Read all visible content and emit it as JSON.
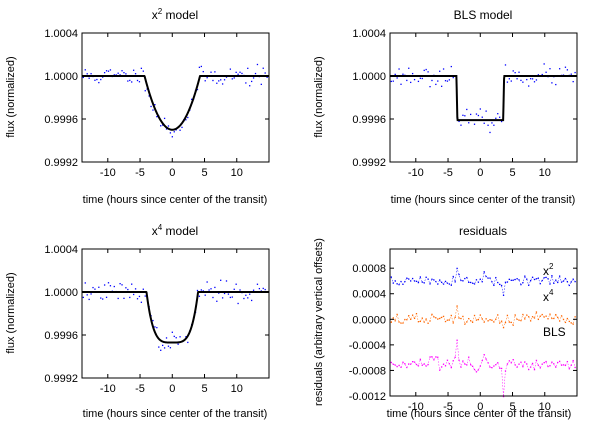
{
  "chart_data": [
    {
      "type": "scatter",
      "title_base": "x",
      "title_sup": "2",
      "title_rest": " model",
      "xlabel": "time (hours since center of the transit)",
      "ylabel": "flux (normalized)",
      "xlim": [
        -14,
        15
      ],
      "ylim": [
        0.9992,
        1.0004
      ],
      "xticks": [
        -10,
        -5,
        0,
        5,
        10
      ],
      "xtick_labels": [
        "-10",
        "-5",
        "0",
        "5",
        "10"
      ],
      "yticks": [
        0.9992,
        0.9996,
        1.0,
        1.0004
      ],
      "ytick_labels": [
        "0.9992",
        "0.9996",
        "1.0000",
        "1.0004"
      ],
      "model": {
        "name": "x2",
        "type": "power",
        "power": 2,
        "depth": 0.0005,
        "half_width": 4.3
      },
      "points_color": "#0000ff",
      "model_color": "#000000",
      "noise_seed": 11
    },
    {
      "type": "scatter",
      "title_base": "BLS model",
      "title_sup": "",
      "title_rest": "",
      "xlabel": "time (hours since center of the transit)",
      "ylabel": "flux (normalized)",
      "xlim": [
        -14,
        15
      ],
      "ylim": [
        0.9992,
        1.0004
      ],
      "xticks": [
        -10,
        -5,
        0,
        5,
        10
      ],
      "xtick_labels": [
        "-10",
        "-5",
        "0",
        "5",
        "10"
      ],
      "yticks": [
        0.9992,
        0.9996,
        1.0,
        1.0004
      ],
      "ytick_labels": [
        "0.9992",
        "0.9996",
        "1.0000",
        "1.0004"
      ],
      "model": {
        "name": "BLS",
        "type": "box",
        "depth": 0.00041,
        "half_width": 3.7,
        "edge_width": 0.15
      },
      "points_color": "#0000ff",
      "model_color": "#000000",
      "noise_seed": 23
    },
    {
      "type": "scatter",
      "title_base": "x",
      "title_sup": "4",
      "title_rest": " model",
      "xlabel": "time (hours since center of the transit)",
      "ylabel": "flux (normalized)",
      "xlim": [
        -14,
        15
      ],
      "ylim": [
        0.9992,
        1.0004
      ],
      "xticks": [
        -10,
        -5,
        0,
        5,
        10
      ],
      "xtick_labels": [
        "-10",
        "-5",
        "0",
        "5",
        "10"
      ],
      "yticks": [
        0.9992,
        0.9996,
        1.0,
        1.0004
      ],
      "ytick_labels": [
        "0.9992",
        "0.9996",
        "1.0000",
        "1.0004"
      ],
      "model": {
        "name": "x4",
        "type": "power",
        "power": 4,
        "depth": 0.00047,
        "half_width": 4.0
      },
      "points_color": "#0000ff",
      "model_color": "#000000",
      "noise_seed": 37
    },
    {
      "type": "line",
      "title_base": "residuals",
      "title_sup": "",
      "title_rest": "",
      "xlabel": "time (hours since center of the transit)",
      "ylabel": "residuals (arbitrary vertical offsets)",
      "xlim": [
        -14,
        15
      ],
      "ylim": [
        -0.0012,
        0.0011
      ],
      "xticks": [
        -10,
        -5,
        0,
        5,
        10
      ],
      "xtick_labels": [
        "-10",
        "-5",
        "0",
        "5",
        "10"
      ],
      "yticks": [
        0.0008,
        0.0004,
        0.0,
        -0.0004,
        -0.0008,
        -0.0012
      ],
      "ytick_labels": [
        "0.0008",
        "0.0004",
        "0.0000",
        "-0.0004",
        "-0.0008",
        "-0.0012"
      ],
      "series": [
        {
          "label_base": "x",
          "label_sup": "2",
          "offset": 0.0006,
          "color": "#0000ff",
          "bump_scale": 1.0,
          "noise_seed": 51
        },
        {
          "label_base": "x",
          "label_sup": "4",
          "offset": 0.0,
          "color": "#ff6600",
          "bump_scale": 0.5,
          "noise_seed": 67
        },
        {
          "label_base": "BLS",
          "label_sup": "",
          "offset": -0.0007,
          "color": "#ff00ff",
          "bump_scale": 1.6,
          "noise_seed": 83
        }
      ]
    }
  ]
}
